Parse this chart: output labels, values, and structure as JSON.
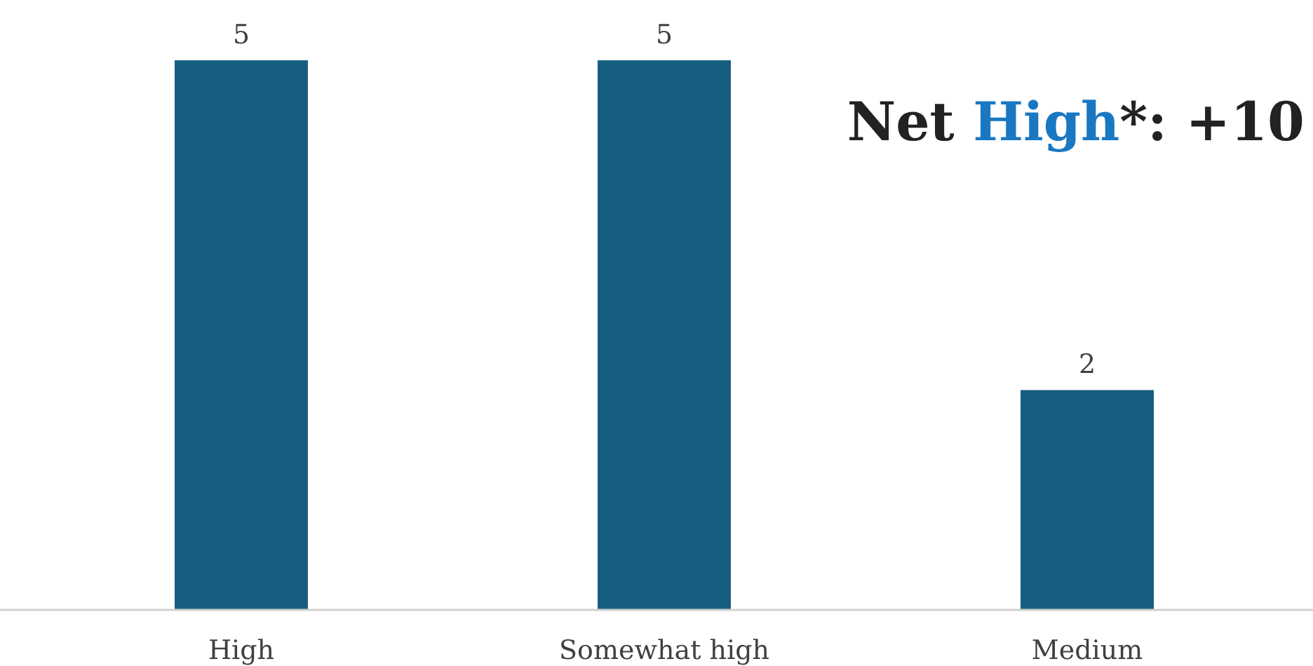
{
  "chart_data": {
    "type": "bar",
    "categories": [
      "High",
      "Somewhat high",
      "Medium"
    ],
    "values": [
      5,
      5,
      2
    ],
    "color": "#165e80",
    "data_labels": true,
    "annotations": [
      "Net High*: +10"
    ]
  }
}
